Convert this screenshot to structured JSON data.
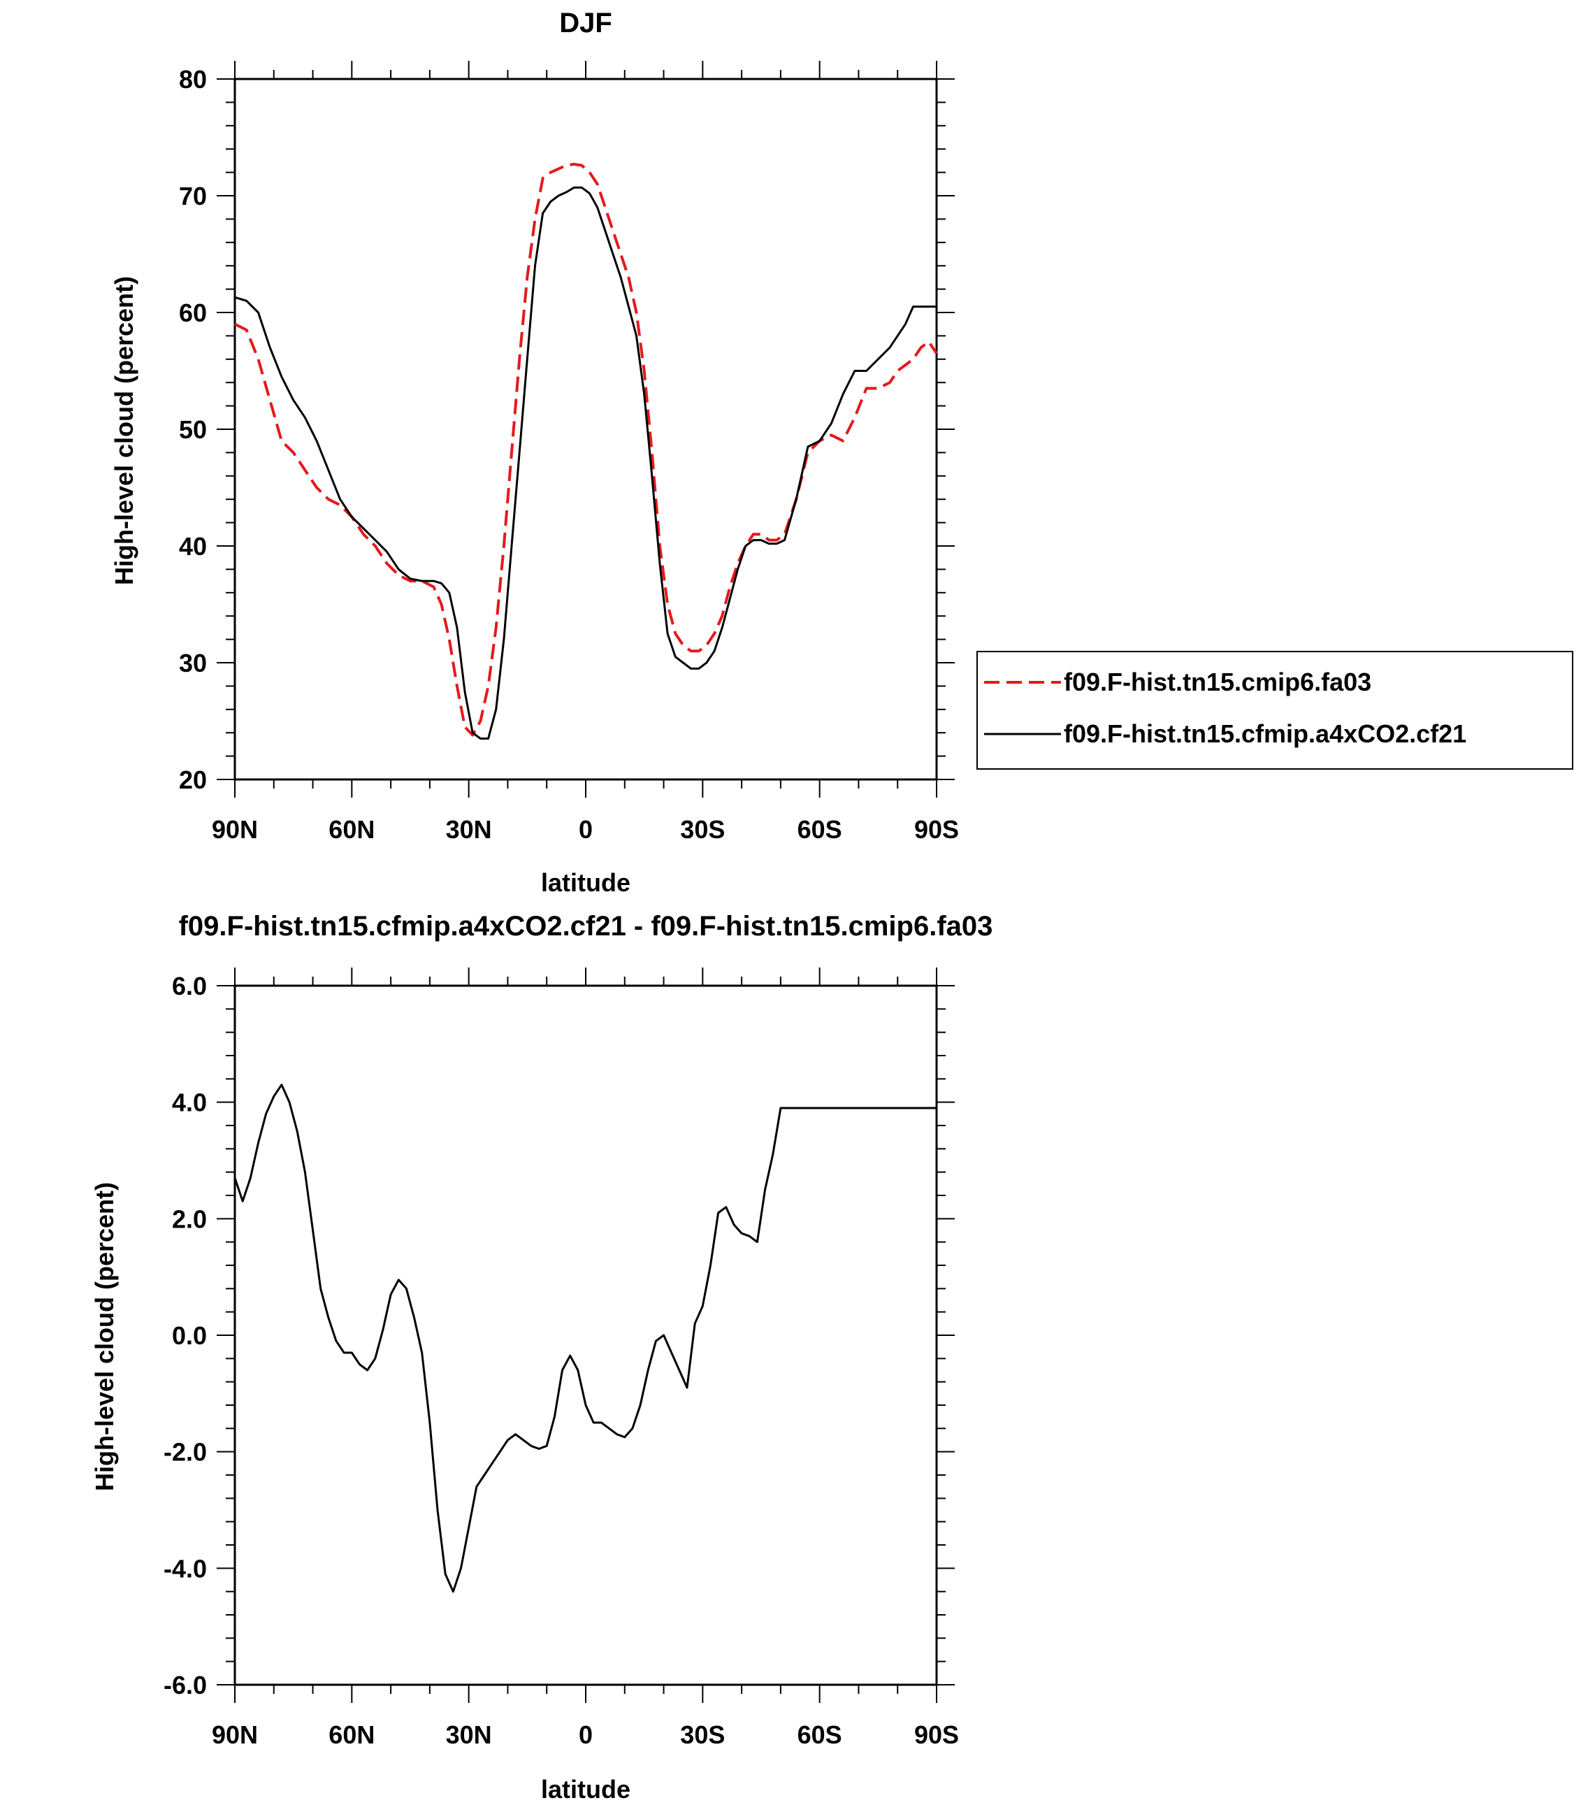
{
  "chart_data": [
    {
      "type": "line",
      "title": "DJF",
      "xlabel": "latitude",
      "ylabel": "High-level cloud (percent)",
      "xlim": [
        90,
        -90
      ],
      "ylim": [
        20,
        80
      ],
      "x_ticks": [
        {
          "value": 90,
          "label": "90N"
        },
        {
          "value": 60,
          "label": "60N"
        },
        {
          "value": 30,
          "label": "30N"
        },
        {
          "value": 0,
          "label": "0"
        },
        {
          "value": -30,
          "label": "30S"
        },
        {
          "value": -60,
          "label": "60S"
        },
        {
          "value": -90,
          "label": "90S"
        }
      ],
      "y_ticks": [
        {
          "value": 80,
          "label": "80"
        },
        {
          "value": 70,
          "label": "70"
        },
        {
          "value": 60,
          "label": "60"
        },
        {
          "value": 50,
          "label": "50"
        },
        {
          "value": 40,
          "label": "40"
        },
        {
          "value": 30,
          "label": "30"
        },
        {
          "value": 20,
          "label": "20"
        }
      ],
      "legend_position": "right",
      "series": [
        {
          "name": "f09.F-hist.tn15.cmip6.fa03",
          "color": "#e41a1c",
          "dash": "dashed",
          "x": [
            90,
            87,
            84,
            81,
            78,
            75,
            72,
            69,
            66,
            63,
            60,
            57,
            54,
            51,
            48,
            45,
            42,
            39,
            37,
            35,
            33,
            31,
            29,
            27,
            25,
            23,
            21,
            19,
            17,
            15,
            13,
            11,
            9,
            7,
            5,
            3,
            1,
            -1,
            -3,
            -5,
            -7,
            -9,
            -11,
            -13,
            -15,
            -17,
            -19,
            -21,
            -23,
            -25,
            -27,
            -29,
            -31,
            -33,
            -35,
            -37,
            -39,
            -41,
            -43,
            -45,
            -47,
            -49,
            -51,
            -54,
            -57,
            -60,
            -63,
            -66,
            -69,
            -72,
            -75,
            -78,
            -80,
            -82,
            -84,
            -86,
            -88,
            -90
          ],
          "y": [
            59,
            58.5,
            56,
            52.5,
            49,
            48,
            46.5,
            45,
            44,
            43.5,
            42.5,
            41,
            40,
            38.5,
            37.5,
            37,
            37,
            36.5,
            35,
            32,
            28,
            24.5,
            23.8,
            25,
            28,
            33,
            40,
            48,
            56,
            63,
            68,
            71.5,
            72,
            72.3,
            72.6,
            72.7,
            72.6,
            72,
            71,
            69,
            67,
            65,
            63,
            60,
            55,
            48,
            40,
            35,
            32.5,
            31.5,
            31,
            31,
            31.5,
            32.5,
            34,
            36.5,
            38.5,
            40,
            41,
            41,
            40.5,
            40.5,
            41,
            44,
            48,
            49,
            49.5,
            49,
            51,
            53.5,
            53.5,
            54,
            55,
            55.5,
            56,
            57,
            57.5,
            56.5
          ],
          "y_positions_note": ""
        },
        {
          "name": "f09.F-hist.tn15.cfmip.a4xCO2.cf21",
          "color": "#000000",
          "dash": "solid",
          "x": [
            90,
            87,
            84,
            81,
            78,
            75,
            72,
            69,
            66,
            63,
            60,
            57,
            54,
            51,
            48,
            45,
            42,
            39,
            37,
            35,
            33,
            31,
            29,
            27,
            25,
            23,
            21,
            19,
            17,
            15,
            13,
            11,
            9,
            7,
            5,
            3,
            1,
            -1,
            -3,
            -5,
            -7,
            -9,
            -11,
            -13,
            -15,
            -17,
            -19,
            -21,
            -23,
            -25,
            -27,
            -29,
            -31,
            -33,
            -35,
            -37,
            -39,
            -41,
            -43,
            -45,
            -47,
            -49,
            -51,
            -54,
            -57,
            -60,
            -63,
            -66,
            -69,
            -72,
            -75,
            -78,
            -80,
            -82,
            -84,
            -86,
            -88,
            -90
          ],
          "y": [
            61.3,
            61,
            60,
            57,
            54.5,
            52.5,
            51,
            49,
            46.5,
            44,
            42.5,
            41.5,
            40.5,
            39.5,
            38,
            37.2,
            37,
            37,
            36.8,
            36,
            33,
            27.5,
            24,
            23.5,
            23.5,
            26,
            32,
            40,
            48,
            56,
            64,
            68.5,
            69.5,
            70,
            70.3,
            70.7,
            70.7,
            70.2,
            69,
            67,
            65,
            63,
            60.5,
            58,
            53,
            46,
            38.5,
            32.5,
            30.5,
            30,
            29.5,
            29.5,
            30,
            31,
            33,
            35.5,
            38,
            40,
            40.5,
            40.5,
            40.2,
            40.2,
            40.5,
            44,
            48.5,
            49,
            50.5,
            53,
            55,
            55,
            56,
            57,
            58,
            59,
            60.5,
            60.5,
            60.5,
            60.5
          ]
        }
      ]
    },
    {
      "type": "line",
      "title": "f09.F-hist.tn15.cfmip.a4xCO2.cf21 - f09.F-hist.tn15.cmip6.fa03",
      "xlabel": "latitude",
      "ylabel": "High-level cloud (percent)",
      "xlim": [
        90,
        -90
      ],
      "ylim": [
        -6,
        6
      ],
      "x_ticks": [
        {
          "value": 90,
          "label": "90N"
        },
        {
          "value": 60,
          "label": "60N"
        },
        {
          "value": 30,
          "label": "30N"
        },
        {
          "value": 0,
          "label": "0"
        },
        {
          "value": -30,
          "label": "30S"
        },
        {
          "value": -60,
          "label": "60S"
        },
        {
          "value": -90,
          "label": "90S"
        }
      ],
      "y_ticks": [
        {
          "value": 6,
          "label": "6.0"
        },
        {
          "value": 4,
          "label": "4.0"
        },
        {
          "value": 2,
          "label": "2.0"
        },
        {
          "value": 0,
          "label": "0.0"
        },
        {
          "value": -2,
          "label": "-2.0"
        },
        {
          "value": -4,
          "label": "-4.0"
        },
        {
          "value": -6,
          "label": "-6.0"
        }
      ],
      "series": [
        {
          "color": "#000000",
          "dash": "solid",
          "x": [
            90,
            88,
            86,
            84,
            82,
            80,
            78,
            76,
            74,
            72,
            70,
            68,
            66,
            64,
            62,
            60,
            58,
            56,
            54,
            52,
            50,
            48,
            46,
            44,
            42,
            40,
            38,
            36,
            34,
            32,
            30,
            28,
            26,
            24,
            22,
            20,
            18,
            16,
            14,
            12,
            10,
            8,
            6,
            4,
            2,
            0,
            -2,
            -4,
            -5,
            -6,
            -8,
            -10,
            -12,
            -14,
            -16,
            -18,
            -20,
            -22,
            -24,
            -26,
            -28,
            -30,
            -32,
            -34,
            -36,
            -38,
            -40,
            -42,
            -44,
            -46,
            -48,
            -50,
            -52,
            -54,
            -55,
            -56,
            -58,
            -60,
            -62,
            -64,
            -66,
            -68,
            -70,
            -72,
            -74,
            -76,
            -78,
            -80,
            -82,
            -84,
            -86,
            -87,
            -88,
            -89,
            -90
          ],
          "y": [
            2.7,
            2.3,
            2.7,
            3.3,
            3.8,
            4.1,
            4.3,
            4.0,
            3.5,
            2.8,
            1.8,
            0.8,
            0.3,
            -0.1,
            -0.3,
            -0.3,
            -0.5,
            -0.6,
            -0.4,
            0.1,
            0.7,
            0.95,
            0.8,
            0.3,
            -0.3,
            -1.5,
            -3.0,
            -4.1,
            -4.4,
            -4.0,
            -3.3,
            -2.6,
            -2.4,
            -2.2,
            -2.0,
            -1.8,
            -1.7,
            -1.8,
            -1.9,
            -1.95,
            -1.9,
            -1.4,
            -0.6,
            -0.35,
            -0.6,
            -1.2,
            -1.5,
            -1.5,
            -1.55,
            -1.6,
            -1.7,
            -1.75,
            -1.6,
            -1.2,
            -0.6,
            -0.1,
            0.0,
            -0.3,
            -0.6,
            -0.9,
            0.2,
            0.5,
            1.2,
            2.1,
            2.2,
            1.9,
            1.75,
            1.7,
            1.6,
            2.5,
            3.1,
            3.9,
            3.9,
            3.9,
            3.9,
            3.9,
            3.9,
            3.9,
            3.9,
            3.9,
            3.9,
            3.9,
            3.9,
            3.9,
            3.9,
            3.9,
            3.9,
            3.9,
            3.9,
            3.9,
            3.9,
            3.9,
            3.9,
            3.9,
            3.9
          ]
        }
      ]
    }
  ]
}
